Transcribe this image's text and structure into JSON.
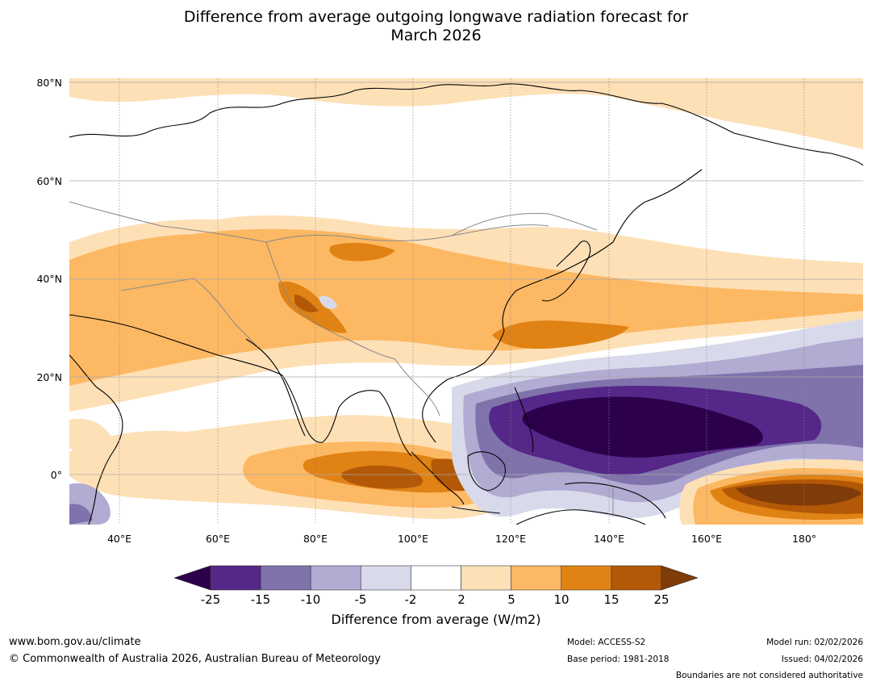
{
  "title": {
    "line1": "Difference from average outgoing longwave radiation forecast for",
    "line2": "March 2026"
  },
  "map": {
    "latitude_labels": [
      "80°N",
      "60°N",
      "40°N",
      "20°N",
      "0°"
    ],
    "longitude_labels": [
      "40°E",
      "60°E",
      "80°E",
      "100°E",
      "120°E",
      "140°E",
      "160°E",
      "180°"
    ]
  },
  "colorbar": {
    "ticks": [
      "-25",
      "-15",
      "-10",
      "-5",
      "-2",
      "2",
      "5",
      "10",
      "15",
      "25"
    ],
    "colors": [
      "#2d004b",
      "#542788",
      "#8073ac",
      "#b2abd2",
      "#d8daeb",
      "#ffffff",
      "#fee0b6",
      "#fdb863",
      "#e08214",
      "#b35806",
      "#7f3b08"
    ],
    "label": "Difference from average (W/m2)"
  },
  "footer": {
    "website": "www.bom.gov.au/climate",
    "copyright": "© Commonwealth of Australia 2026, Australian Bureau of Meteorology",
    "model": "Model: ACCESS-S2",
    "base_period": "Base period: 1981-2018",
    "model_run": "Model run: 02/02/2026",
    "issued": "Issued: 04/02/2026",
    "disclaimer": "Boundaries are not considered authoritative"
  }
}
